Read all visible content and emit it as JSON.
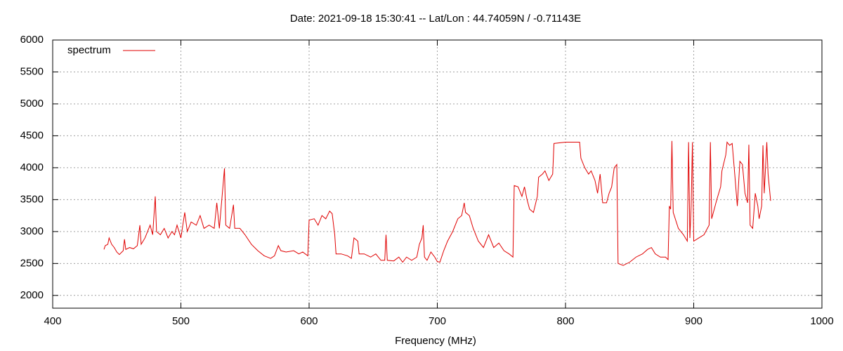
{
  "chart_data": {
    "type": "line",
    "title": "Date: 2021-09-18 15:30:41  --  Lat/Lon : 44.74059N / -0.71143E",
    "x_label": "Frequency (MHz)",
    "xlim": [
      400,
      1000
    ],
    "xticks": [
      400,
      500,
      600,
      700,
      800,
      900,
      1000
    ],
    "ylim": [
      1800,
      6000
    ],
    "yticks": [
      2000,
      2500,
      3000,
      3500,
      4000,
      4500,
      5000,
      5500,
      6000
    ],
    "grid": true,
    "legend": "top-left",
    "x": [
      440,
      441,
      443,
      444,
      446,
      448,
      450,
      452,
      455,
      456,
      457,
      460,
      463,
      466,
      468,
      469,
      472,
      474,
      476,
      478,
      480,
      481,
      484,
      487,
      490,
      493,
      495,
      497,
      500,
      503,
      505,
      508,
      512,
      515,
      518,
      522,
      526,
      528,
      530,
      534,
      535,
      538,
      541,
      542,
      546,
      550,
      555,
      560,
      565,
      570,
      573,
      576,
      578,
      582,
      588,
      592,
      595,
      599,
      600,
      604,
      607,
      610,
      613,
      616,
      618,
      620,
      621,
      625,
      630,
      633,
      635,
      638,
      639,
      643,
      648,
      652,
      656,
      659,
      660,
      661,
      666,
      670,
      673,
      676,
      680,
      684,
      686,
      688,
      689,
      690,
      692,
      695,
      698,
      700,
      702,
      705,
      708,
      712,
      716,
      719,
      721,
      722,
      725,
      728,
      732,
      736,
      740,
      744,
      748,
      752,
      756,
      759,
      760,
      763,
      766,
      768,
      770,
      772,
      775,
      778,
      779,
      782,
      784,
      787,
      790,
      791,
      800,
      811,
      812,
      815,
      818,
      820,
      823,
      825,
      827,
      829,
      832,
      834,
      836,
      838,
      840,
      841,
      845,
      850,
      855,
      860,
      864,
      867,
      870,
      874,
      878,
      880,
      881,
      882,
      883,
      884,
      888,
      892,
      895,
      896,
      897,
      898,
      899,
      900,
      904,
      908,
      912,
      913,
      914,
      918,
      921,
      922,
      925,
      926,
      928,
      930,
      932,
      934,
      936,
      938,
      940,
      942,
      943,
      944,
      946,
      948,
      950,
      951,
      953,
      954,
      955,
      957,
      958,
      960
    ],
    "series": [
      {
        "name": "spectrum",
        "color": "#e00000",
        "values": [
          2720,
          2780,
          2800,
          2900,
          2800,
          2750,
          2680,
          2640,
          2700,
          2880,
          2720,
          2750,
          2730,
          2780,
          3100,
          2800,
          2900,
          3000,
          3100,
          2950,
          3550,
          3000,
          2950,
          3050,
          2900,
          3000,
          2950,
          3100,
          2900,
          3300,
          3000,
          3150,
          3100,
          3250,
          3050,
          3100,
          3050,
          3450,
          3050,
          3990,
          3100,
          3050,
          3420,
          3050,
          3050,
          2950,
          2800,
          2700,
          2620,
          2580,
          2620,
          2780,
          2700,
          2680,
          2700,
          2650,
          2680,
          2620,
          3180,
          3200,
          3100,
          3250,
          3200,
          3320,
          3280,
          2950,
          2650,
          2650,
          2620,
          2580,
          2900,
          2850,
          2650,
          2650,
          2600,
          2650,
          2550,
          2550,
          2950,
          2550,
          2540,
          2600,
          2520,
          2600,
          2550,
          2600,
          2800,
          2900,
          3100,
          2600,
          2550,
          2680,
          2600,
          2530,
          2520,
          2700,
          2850,
          3000,
          3200,
          3250,
          3450,
          3300,
          3250,
          3050,
          2850,
          2750,
          2950,
          2750,
          2820,
          2700,
          2650,
          2600,
          3720,
          3700,
          3550,
          3700,
          3500,
          3350,
          3300,
          3550,
          3850,
          3900,
          3950,
          3800,
          3900,
          4380,
          4400,
          4400,
          4150,
          4000,
          3900,
          3950,
          3800,
          3600,
          3900,
          3450,
          3450,
          3600,
          3700,
          4000,
          4050,
          2500,
          2470,
          2520,
          2600,
          2650,
          2720,
          2750,
          2650,
          2600,
          2600,
          2560,
          3400,
          3350,
          4420,
          3300,
          3050,
          2950,
          2850,
          4400,
          2900,
          3400,
          4400,
          2850,
          2900,
          2950,
          3100,
          4400,
          3200,
          3500,
          3700,
          3950,
          4200,
          4400,
          4350,
          4380,
          3900,
          3400,
          4100,
          4050,
          3600,
          3450,
          4360,
          3100,
          3050,
          3600,
          3400,
          3200,
          3400,
          4350,
          3600,
          4400,
          3900,
          3480
        ]
      }
    ]
  }
}
